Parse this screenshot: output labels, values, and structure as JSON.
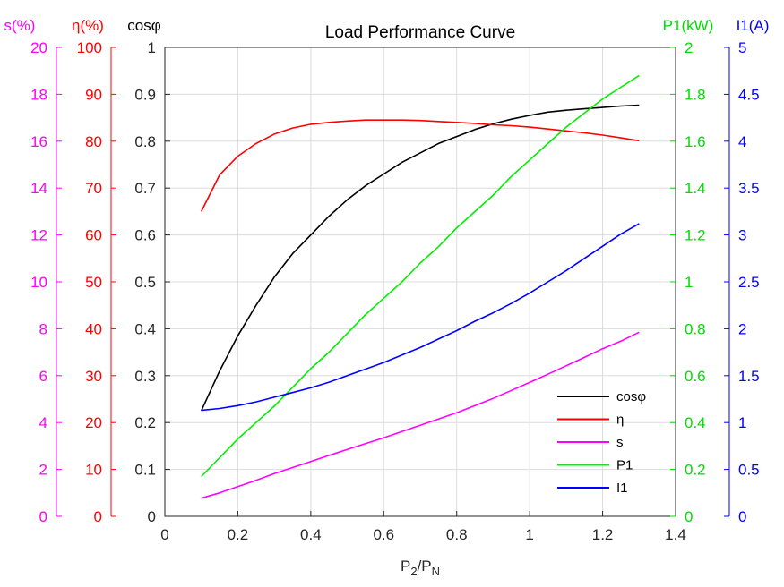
{
  "chart_data": {
    "type": "line",
    "title": "Load Performance Curve",
    "xlabel": {
      "main": "P",
      "sub1": "2",
      "sep": "/P",
      "sub2": "N"
    },
    "x_range": [
      0,
      1.4
    ],
    "x_ticks": [
      0,
      0.2,
      0.4,
      0.6,
      0.8,
      1,
      1.2,
      1.4
    ],
    "x_tick_labels": [
      "0",
      "0.2",
      "0.4",
      "0.6",
      "0.8",
      "1",
      "1.2",
      "1.4"
    ],
    "grid": true,
    "legend_position": "bottom-right",
    "axes": [
      {
        "id": "s",
        "side": "left",
        "label": "s(%)",
        "color": "#ff00ff",
        "range": [
          0,
          20
        ],
        "ticks": [
          "0",
          "2",
          "4",
          "6",
          "8",
          "10",
          "12",
          "14",
          "16",
          "18",
          "20"
        ]
      },
      {
        "id": "eta",
        "side": "left",
        "label": "η(%)",
        "color": "#ff0000",
        "range": [
          0,
          100
        ],
        "ticks": [
          "0",
          "10",
          "20",
          "30",
          "40",
          "50",
          "60",
          "70",
          "80",
          "90",
          "100"
        ]
      },
      {
        "id": "cos",
        "side": "left",
        "label": "cosφ",
        "color": "#262626",
        "range": [
          0,
          1
        ],
        "ticks": [
          "0",
          "0.1",
          "0.2",
          "0.3",
          "0.4",
          "0.5",
          "0.6",
          "0.7",
          "0.8",
          "0.9",
          "1"
        ]
      },
      {
        "id": "p1",
        "side": "right",
        "label": "P1(kW)",
        "color": "#00dd00",
        "range": [
          0,
          2
        ],
        "ticks": [
          "0",
          "0.2",
          "0.4",
          "0.6",
          "0.8",
          "1",
          "1.2",
          "1.4",
          "1.6",
          "1.8",
          "2"
        ]
      },
      {
        "id": "i1",
        "side": "right",
        "label": "I1(A)",
        "color": "#0000ff",
        "range": [
          0,
          5
        ],
        "ticks": [
          "0",
          "0.5",
          "1",
          "1.5",
          "2",
          "2.5",
          "3",
          "3.5",
          "4",
          "4.5",
          "5"
        ]
      }
    ],
    "x": [
      0.1,
      0.15,
      0.2,
      0.25,
      0.3,
      0.35,
      0.4,
      0.45,
      0.5,
      0.55,
      0.6,
      0.65,
      0.7,
      0.75,
      0.8,
      0.85,
      0.9,
      0.95,
      1.0,
      1.05,
      1.1,
      1.15,
      1.2,
      1.25,
      1.3
    ],
    "series": [
      {
        "name": "cosφ",
        "axis": "cos",
        "color": "#000000",
        "values": [
          0.225,
          0.31,
          0.385,
          0.45,
          0.51,
          0.56,
          0.6,
          0.64,
          0.675,
          0.705,
          0.73,
          0.755,
          0.775,
          0.795,
          0.81,
          0.825,
          0.837,
          0.847,
          0.855,
          0.862,
          0.866,
          0.869,
          0.872,
          0.875,
          0.877
        ]
      },
      {
        "name": "η",
        "axis": "eta",
        "color": "#ff0000",
        "values": [
          65.0,
          72.8,
          76.8,
          79.5,
          81.5,
          82.8,
          83.6,
          84.0,
          84.3,
          84.5,
          84.5,
          84.5,
          84.4,
          84.2,
          84.0,
          83.8,
          83.5,
          83.3,
          83.0,
          82.6,
          82.2,
          81.8,
          81.3,
          80.7,
          80.1
        ]
      },
      {
        "name": "s",
        "axis": "s",
        "color": "#ff00ff",
        "values": [
          0.78,
          1.0,
          1.27,
          1.54,
          1.82,
          2.08,
          2.34,
          2.6,
          2.85,
          3.1,
          3.35,
          3.62,
          3.88,
          4.15,
          4.42,
          4.72,
          5.03,
          5.37,
          5.71,
          6.06,
          6.42,
          6.78,
          7.15,
          7.47,
          7.85
        ]
      },
      {
        "name": "P1",
        "axis": "p1",
        "color": "#00ee00",
        "values": [
          0.17,
          0.25,
          0.33,
          0.4,
          0.47,
          0.55,
          0.63,
          0.7,
          0.78,
          0.86,
          0.93,
          1.0,
          1.08,
          1.15,
          1.23,
          1.3,
          1.37,
          1.45,
          1.52,
          1.59,
          1.66,
          1.72,
          1.78,
          1.83,
          1.88
        ]
      },
      {
        "name": "I1",
        "axis": "i1",
        "color": "#0000ff",
        "values": [
          1.13,
          1.15,
          1.18,
          1.22,
          1.27,
          1.32,
          1.37,
          1.43,
          1.5,
          1.57,
          1.64,
          1.72,
          1.8,
          1.89,
          1.98,
          2.08,
          2.17,
          2.27,
          2.38,
          2.5,
          2.62,
          2.75,
          2.88,
          3.01,
          3.12
        ]
      }
    ]
  }
}
